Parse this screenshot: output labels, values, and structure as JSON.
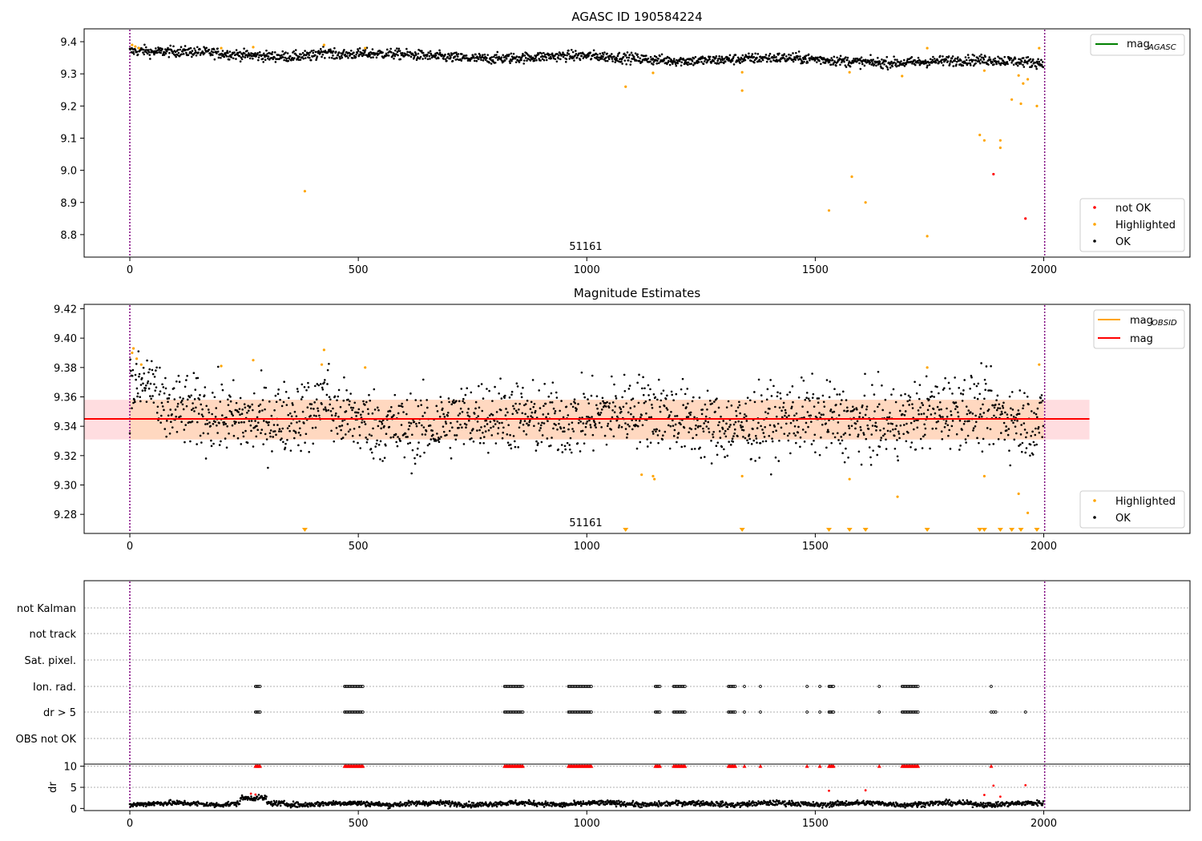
{
  "chart_data": [
    {
      "type": "scatter",
      "title": "AGASC ID 190584224",
      "xlim": [
        -100,
        2320
      ],
      "ylim": [
        8.73,
        9.44
      ],
      "x_ticks": [
        0,
        500,
        1000,
        1500,
        2000
      ],
      "y_ticks": [
        8.8,
        8.9,
        9.0,
        9.1,
        9.2,
        9.3,
        9.4
      ],
      "y_tick_labels": [
        "8.8",
        "8.9",
        "9.0",
        "9.1",
        "9.2",
        "9.3",
        "9.4"
      ],
      "grid": false,
      "vlines": [
        0,
        2002
      ],
      "annotation": {
        "text": "51161",
        "x": 1000,
        "y": 8.765
      },
      "legend_upper": {
        "placement": "top-right",
        "entries": [
          {
            "label": "mag",
            "sub": "AGASC",
            "color": "#008000",
            "kind": "line"
          }
        ]
      },
      "legend_lower": {
        "placement": "bottom-right",
        "entries": [
          {
            "label": "not OK",
            "color": "#ff0000",
            "kind": "point"
          },
          {
            "label": "Highlighted",
            "color": "#ffa500",
            "kind": "point"
          },
          {
            "label": "OK",
            "color": "#000000",
            "kind": "point"
          }
        ]
      },
      "series": [
        {
          "name": "OK",
          "color": "#000000",
          "band": [
            9.315,
            9.385
          ],
          "x_range": [
            0,
            2000
          ],
          "n": 1800
        },
        {
          "name": "Highlighted",
          "color": "#ffa500",
          "points": [
            [
              5,
              9.39
            ],
            [
              12,
              9.385
            ],
            [
              20,
              9.38
            ],
            [
              200,
              9.38
            ],
            [
              270,
              9.383
            ],
            [
              383,
              8.935
            ],
            [
              425,
              9.39
            ],
            [
              515,
              9.38
            ],
            [
              1085,
              9.26
            ],
            [
              1145,
              9.303
            ],
            [
              1340,
              9.248
            ],
            [
              1340,
              9.305
            ],
            [
              1530,
              8.875
            ],
            [
              1575,
              9.305
            ],
            [
              1580,
              8.98
            ],
            [
              1610,
              8.9
            ],
            [
              1690,
              9.293
            ],
            [
              1745,
              9.38
            ],
            [
              1745,
              8.795
            ],
            [
              1870,
              9.31
            ],
            [
              1860,
              9.11
            ],
            [
              1870,
              9.093
            ],
            [
              1905,
              9.093
            ],
            [
              1905,
              9.07
            ],
            [
              1930,
              9.22
            ],
            [
              1945,
              9.295
            ],
            [
              1950,
              9.207
            ],
            [
              1955,
              9.27
            ],
            [
              1965,
              9.283
            ],
            [
              1985,
              9.2
            ],
            [
              1990,
              9.38
            ]
          ]
        },
        {
          "name": "not OK",
          "color": "#ff0000",
          "points": [
            [
              1890,
              8.988
            ],
            [
              1960,
              8.85
            ]
          ]
        }
      ]
    },
    {
      "type": "scatter",
      "title": "Magnitude Estimates",
      "xlim": [
        -100,
        2320
      ],
      "ylim": [
        9.267,
        9.423
      ],
      "x_ticks": [
        0,
        500,
        1000,
        1500,
        2000
      ],
      "y_ticks": [
        9.28,
        9.3,
        9.32,
        9.34,
        9.36,
        9.38,
        9.4,
        9.42
      ],
      "y_tick_labels": [
        "9.28",
        "9.30",
        "9.32",
        "9.34",
        "9.36",
        "9.38",
        "9.40",
        "9.42"
      ],
      "grid": false,
      "vlines": [
        0,
        2002
      ],
      "annotation": {
        "text": "51161",
        "x": 1000,
        "y": 9.275
      },
      "mag_line": {
        "value": 9.345,
        "x_range": [
          -100,
          2100
        ],
        "band": [
          9.331,
          9.358
        ]
      },
      "obsid_band": {
        "x_range": [
          0,
          2000
        ],
        "band": [
          9.331,
          9.358
        ]
      },
      "legend_upper": {
        "placement": "top-right",
        "entries": [
          {
            "label": "mag",
            "sub": "OBSID",
            "color": "#ffa500",
            "kind": "line"
          },
          {
            "label": "mag",
            "sub": "",
            "color": "#ff0000",
            "kind": "line"
          }
        ]
      },
      "legend_lower": {
        "placement": "bottom-right",
        "entries": [
          {
            "label": "Highlighted",
            "color": "#ffa500",
            "kind": "point"
          },
          {
            "label": "OK",
            "color": "#000000",
            "kind": "point"
          }
        ]
      },
      "series": [
        {
          "name": "OK",
          "color": "#000000",
          "center": 9.345,
          "spread": 0.012,
          "x_range": [
            0,
            2000
          ],
          "n": 1800
        },
        {
          "name": "Highlighted",
          "color": "#ffa500",
          "points": [
            [
              5,
              9.39
            ],
            [
              8,
              9.393
            ],
            [
              15,
              9.386
            ],
            [
              25,
              9.382
            ],
            [
              200,
              9.381
            ],
            [
              270,
              9.385
            ],
            [
              425,
              9.392
            ],
            [
              420,
              9.382
            ],
            [
              515,
              9.38
            ],
            [
              1120,
              9.307
            ],
            [
              1145,
              9.306
            ],
            [
              1148,
              9.304
            ],
            [
              1340,
              9.306
            ],
            [
              1575,
              9.304
            ],
            [
              1680,
              9.292
            ],
            [
              1745,
              9.38
            ],
            [
              1870,
              9.306
            ],
            [
              1945,
              9.294
            ],
            [
              1965,
              9.281
            ],
            [
              1990,
              9.382
            ]
          ]
        },
        {
          "name": "Highlighted (out of range)",
          "color": "#ffa500",
          "marker": "down-triangle",
          "x": [
            383,
            1085,
            1340,
            1530,
            1575,
            1610,
            1745,
            1860,
            1870,
            1905,
            1930,
            1950,
            1985
          ]
        }
      ]
    },
    {
      "type": "scatter",
      "title": "",
      "xlim": [
        -100,
        2320
      ],
      "x_ticks": [
        0,
        500,
        1000,
        1500,
        2000
      ],
      "vlines": [
        0,
        2002
      ],
      "flag_rows": [
        "not Kalman",
        "not track",
        "Sat. pixel.",
        "Ion. rad.",
        "dr > 5",
        "OBS not OK"
      ],
      "flag_clusters": [
        [
          275,
          285
        ],
        [
          470,
          510
        ],
        [
          820,
          860
        ],
        [
          960,
          1010
        ],
        [
          1150,
          1160
        ],
        [
          1190,
          1215
        ],
        [
          1310,
          1325
        ],
        [
          1345,
          1347
        ],
        [
          1380,
          1382
        ],
        [
          1482,
          1484
        ],
        [
          1510,
          1512
        ],
        [
          1530,
          1540
        ],
        [
          1640,
          1642
        ],
        [
          1690,
          1725
        ],
        [
          1885,
          1887
        ]
      ],
      "flag_extra_dr": [
        1890,
        1895,
        1960
      ],
      "dr_panel": {
        "ylabel": "dr",
        "ylim": [
          -0.5,
          10.5
        ],
        "y_ticks": [
          0,
          5,
          10
        ],
        "y_tick_labels": [
          "0",
          "5",
          "10"
        ],
        "clip_value": 10,
        "red_points": [
          [
            1530,
            4.2
          ],
          [
            1610,
            4.3
          ],
          [
            1870,
            3.2
          ],
          [
            1890,
            5.4
          ],
          [
            1905,
            2.8
          ],
          [
            1960,
            5.5
          ],
          [
            265,
            3.5
          ],
          [
            275,
            3.3
          ]
        ]
      }
    }
  ]
}
